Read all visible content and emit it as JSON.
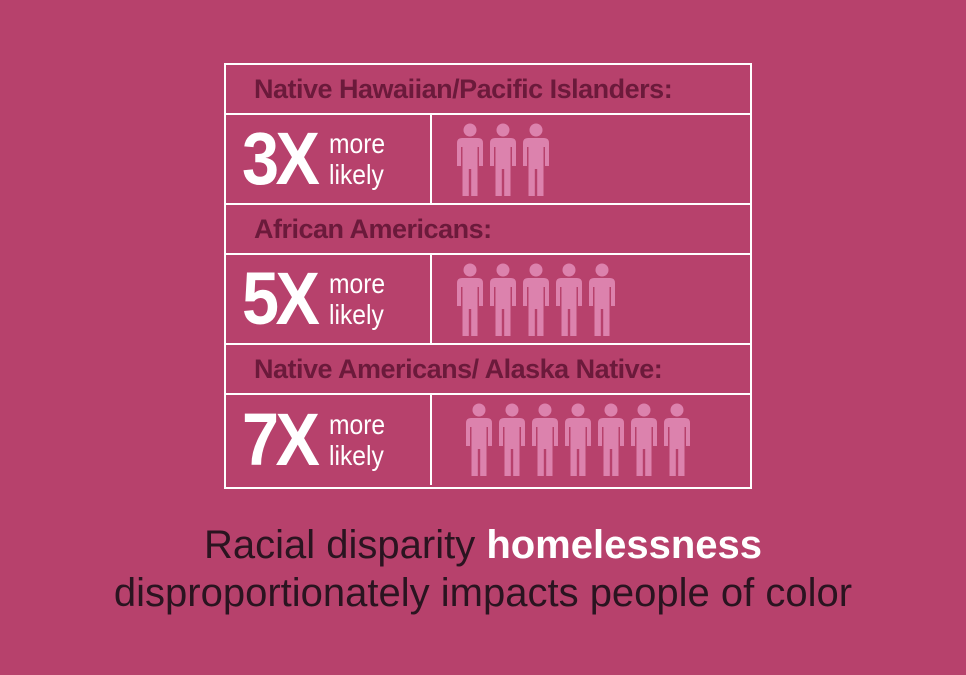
{
  "chart_data": {
    "type": "pictogram",
    "categories": [
      "Native Hawaiian/Pacific Islanders:",
      "African Americans:",
      "Native Americans/ Alaska Native:"
    ],
    "values": [
      3,
      5,
      7
    ],
    "multiplier_labels": [
      "3X",
      "5X",
      "7X"
    ],
    "value_suffix": [
      "more",
      "likely"
    ],
    "icon": "person-icon"
  },
  "colors": {
    "background": "#b7416c",
    "header_text": "#6b1a3b",
    "icon": "#dc82ad",
    "border": "#ffffff"
  },
  "caption": {
    "line1_prefix": "Racial disparity ",
    "line1_emphasis": "homelessness",
    "line2": "disproportionately impacts people of color"
  }
}
